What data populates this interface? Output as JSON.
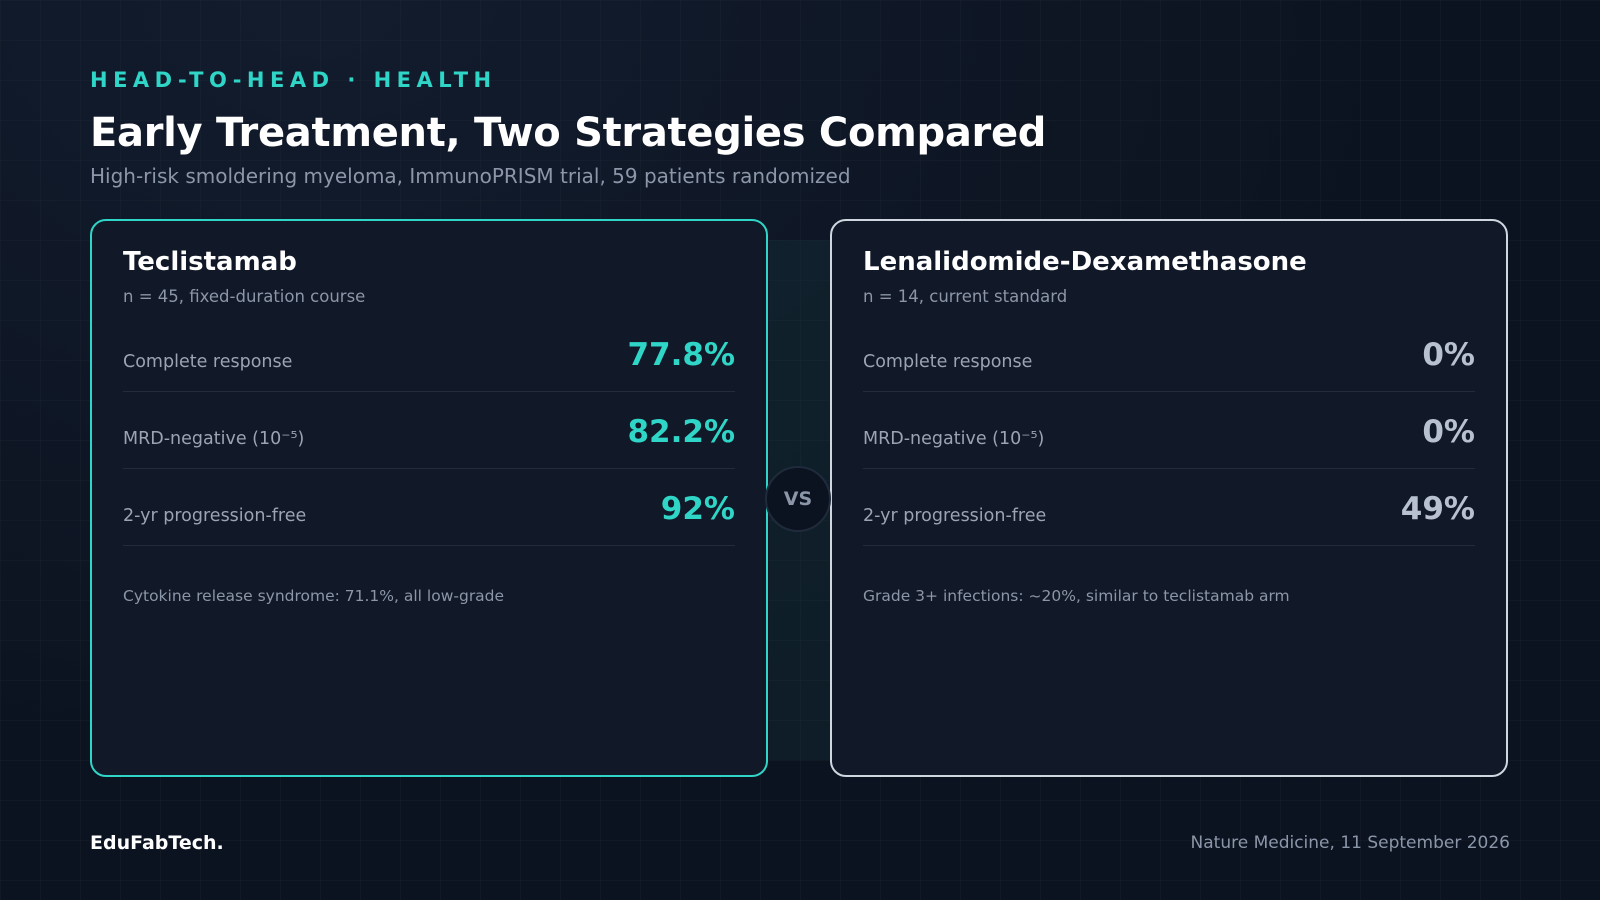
{
  "header": {
    "kicker": "HEAD-TO-HEAD · HEALTH",
    "title": "Early Treatment, Two Strategies Compared",
    "subtitle": "High-risk smoldering myeloma, ImmunoPRISM trial, 59 patients randomized"
  },
  "arms": [
    {
      "name": "Teclistamab",
      "meta": "n = 45, fixed-duration course",
      "metrics": [
        {
          "label": "Complete response",
          "value": "77.8%"
        },
        {
          "label": "MRD-negative (10⁻⁵)",
          "value": "82.2%"
        },
        {
          "label": "2-yr progression-free",
          "value": "92%"
        }
      ],
      "note": "Cytokine release syndrome: 71.1%, all low-grade"
    },
    {
      "name": "Lenalidomide-Dexamethasone",
      "meta": "n = 14, current standard",
      "metrics": [
        {
          "label": "Complete response",
          "value": "0%"
        },
        {
          "label": "MRD-negative (10⁻⁵)",
          "value": "0%"
        },
        {
          "label": "2-yr progression-free",
          "value": "49%"
        }
      ],
      "note": "Grade 3+ infections: ~20%, similar to teclistamab arm"
    }
  ],
  "vs_label": "VS",
  "footer": {
    "brand": "EduFabTech.",
    "source": "Nature Medicine, 11 September 2026"
  },
  "colors": {
    "accent": "#2fd5c6",
    "background": "#0c1320",
    "card": "#111827",
    "comparator_border": "#cfd6e0"
  }
}
